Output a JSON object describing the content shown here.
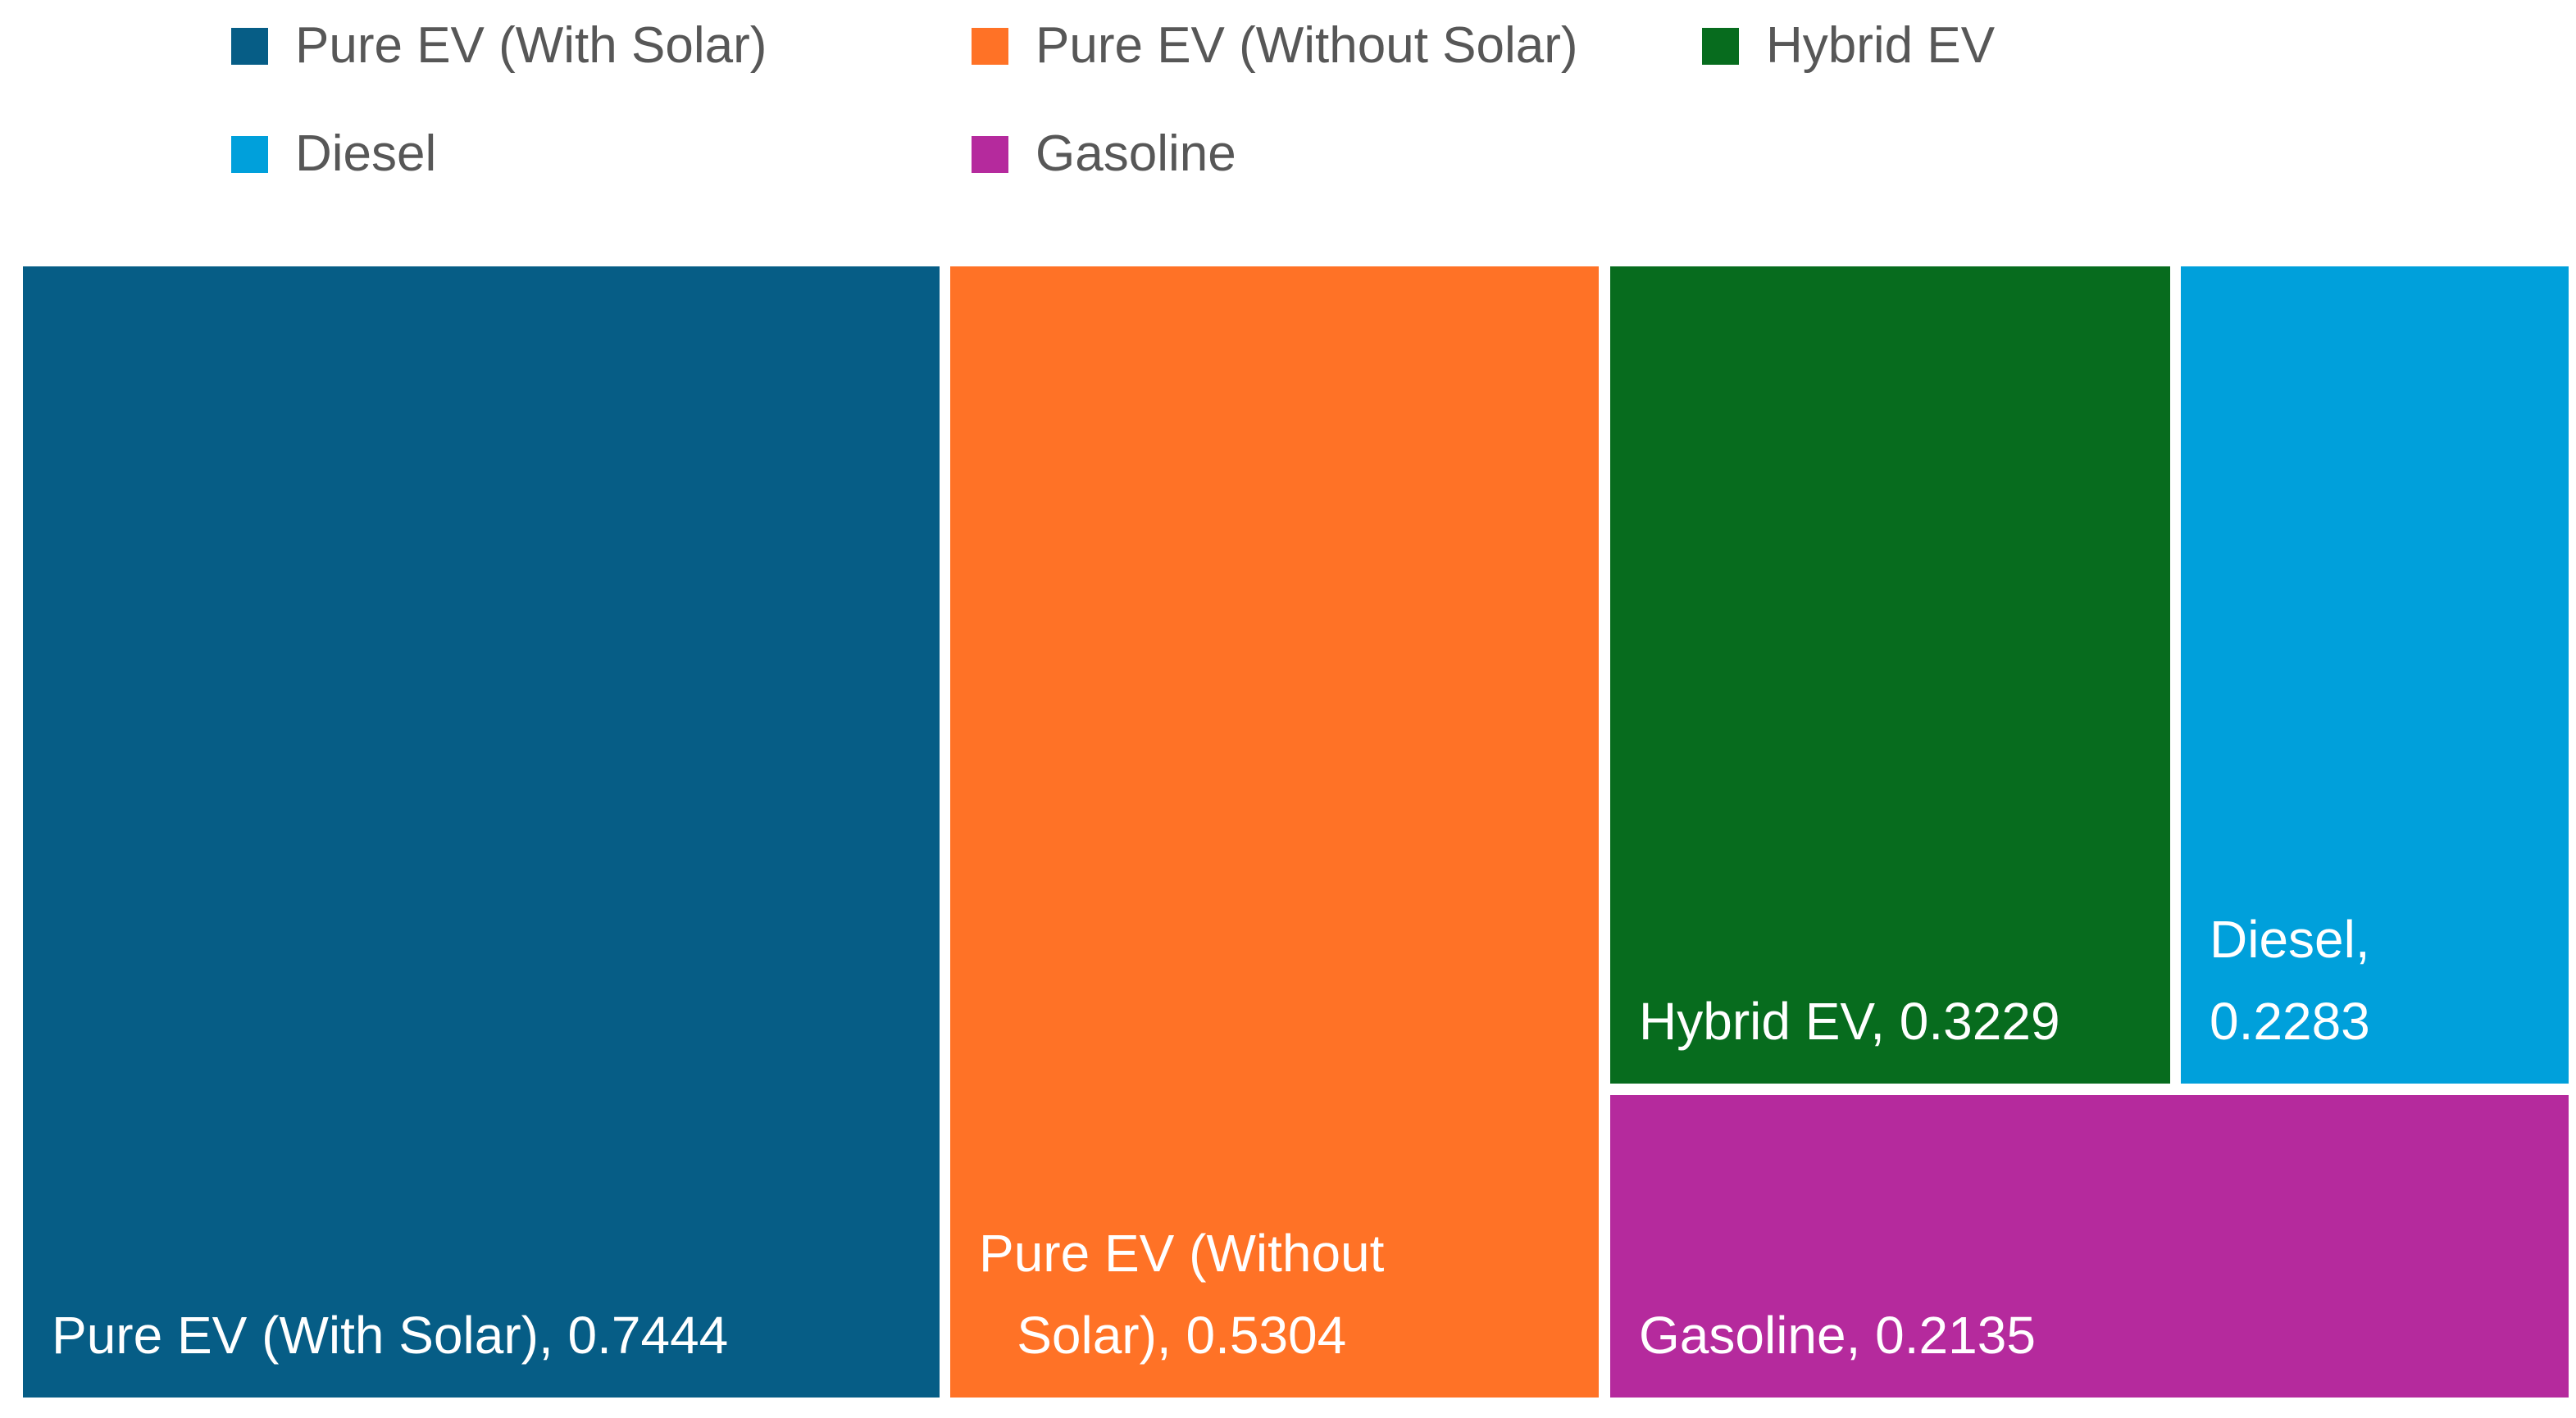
{
  "chart_data": {
    "type": "treemap",
    "title": "",
    "categories": [
      "Pure EV (With Solar)",
      "Pure EV (Without Solar)",
      "Hybrid EV",
      "Diesel",
      "Gasoline"
    ],
    "values": [
      0.7444,
      0.5304,
      0.3229,
      0.2283,
      0.2135
    ],
    "colors": [
      "#065D86",
      "#FF7226",
      "#076C1E",
      "#00A0DB",
      "#B52A9D"
    ],
    "legend_position": "top",
    "data_label_format": "category, value",
    "background": "#FFFFFF",
    "legend_text_color": "#575757",
    "label_text_color": "#FFFFFF"
  },
  "legend": {
    "items": [
      {
        "label": "Pure EV (With Solar)",
        "color": "#065D86"
      },
      {
        "label": "Pure EV (Without Solar)",
        "color": "#FF7226"
      },
      {
        "label": "Hybrid EV",
        "color": "#076C1E"
      },
      {
        "label": "Diesel",
        "color": "#00A0DB"
      },
      {
        "label": "Gasoline",
        "color": "#B52A9D"
      }
    ]
  },
  "treemap": {
    "tiles": [
      {
        "name": "Pure EV (With Solar)",
        "value": 0.7444,
        "color": "#065D86",
        "line1": "Pure EV (With Solar), 0.7444",
        "line2": ""
      },
      {
        "name": "Pure EV (Without Solar)",
        "value": 0.5304,
        "color": "#FF7226",
        "line1": "Pure EV (Without",
        "line2": "Solar), 0.5304"
      },
      {
        "name": "Hybrid EV",
        "value": 0.3229,
        "color": "#076C1E",
        "line1": "Hybrid EV, 0.3229",
        "line2": ""
      },
      {
        "name": "Diesel",
        "value": 0.2283,
        "color": "#00A0DB",
        "line1": "Diesel,",
        "line2": "0.2283"
      },
      {
        "name": "Gasoline",
        "value": 0.2135,
        "color": "#B52A9D",
        "line1": "Gasoline, 0.2135",
        "line2": ""
      }
    ]
  }
}
